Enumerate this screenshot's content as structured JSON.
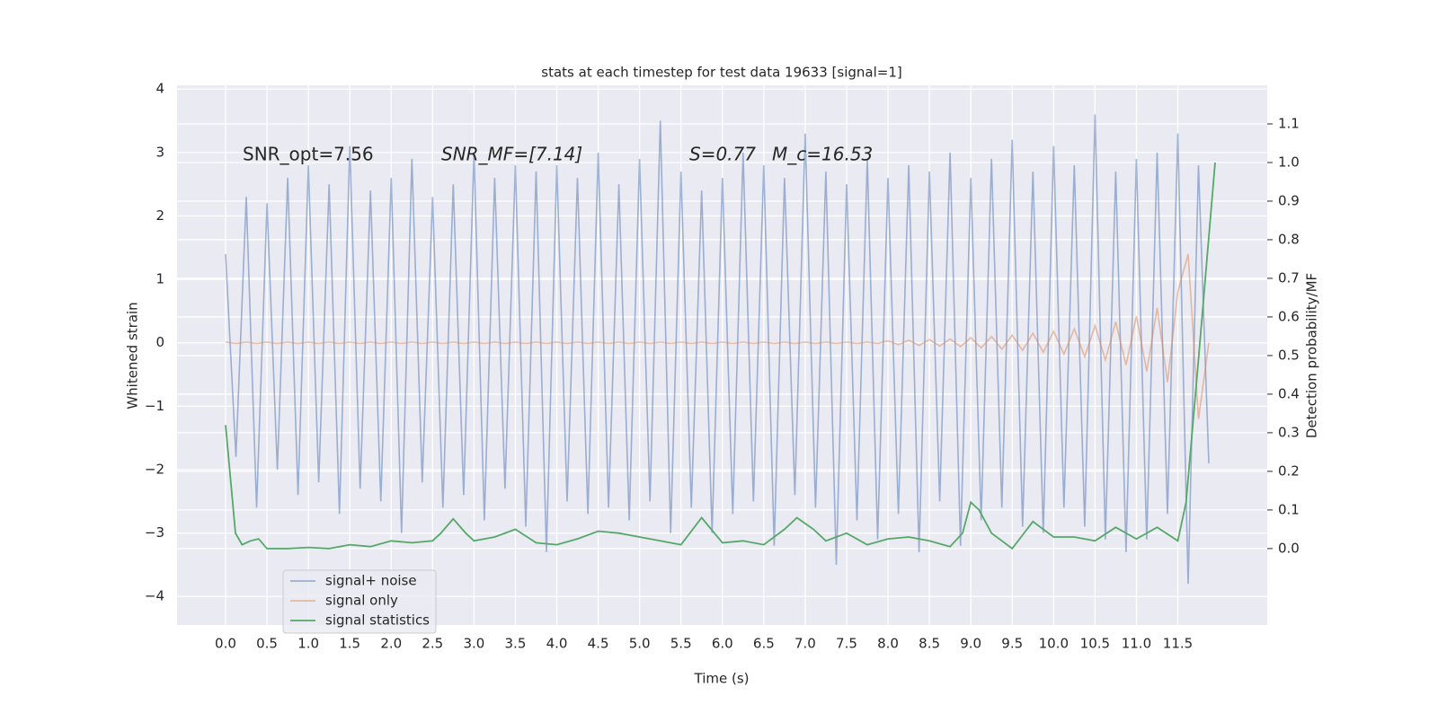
{
  "chart_data": {
    "type": "line",
    "title": "stats at each timestep for test data 19633 [signal=1]",
    "xlabel": "Time (s)",
    "ylabel": "Whitened strain",
    "y2label": "Detection probability/MF",
    "annotations": [
      "SNR_opt=7.56",
      "SNR_MF=[7.14]",
      "S=0.77",
      "M_c=16.53"
    ],
    "xlim": [
      -0.586,
      12.58
    ],
    "ylim": [
      -4.45,
      4.06
    ],
    "y2lim": [
      -0.198,
      1.2
    ],
    "xticks": [
      {
        "value": 0,
        "label": "0.0"
      },
      0.5,
      {
        "value": 1,
        "label": "1.0"
      },
      1.5,
      {
        "value": 2,
        "label": "2.0"
      },
      2.5,
      {
        "value": 3,
        "label": "3.0"
      },
      3.5,
      {
        "value": 4,
        "label": "4.0"
      },
      4.5,
      {
        "value": 5,
        "label": "5.0"
      },
      5.5,
      {
        "value": 6,
        "label": "6.0"
      },
      6.5,
      {
        "value": 7,
        "label": "7.0"
      },
      7.5,
      {
        "value": 8,
        "label": "8.0"
      },
      8.5,
      {
        "value": 9,
        "label": "9.0"
      },
      9.5,
      {
        "value": 10,
        "label": "10.0"
      },
      10.5,
      {
        "value": 11,
        "label": "11.0"
      },
      11.5
    ],
    "yticks": [
      {
        "value": -4,
        "label": "−4"
      },
      {
        "value": -3,
        "label": "−3"
      },
      {
        "value": -2,
        "label": "−2"
      },
      {
        "value": -1,
        "label": "−1"
      },
      0,
      1,
      2,
      3,
      4
    ],
    "y2ticks": [
      {
        "value": 0,
        "label": "0.0"
      },
      0.1,
      0.2,
      0.3,
      0.4,
      0.5,
      0.6,
      0.7,
      0.8,
      0.9,
      {
        "value": 1,
        "label": "1.0"
      },
      1.1
    ],
    "grid": true,
    "legend": "lower left",
    "series": [
      {
        "name": "signal+ noise",
        "color": "#4c72b0",
        "x": [
          0,
          0.125,
          0.25,
          0.375,
          0.5,
          0.625,
          0.75,
          0.875,
          1,
          1.125,
          1.25,
          1.375,
          1.5,
          1.625,
          1.75,
          1.875,
          2,
          2.125,
          2.25,
          2.375,
          2.5,
          2.625,
          2.75,
          2.875,
          3,
          3.125,
          3.25,
          3.375,
          3.5,
          3.625,
          3.75,
          3.875,
          4,
          4.125,
          4.25,
          4.375,
          4.5,
          4.625,
          4.75,
          4.875,
          5,
          5.125,
          5.25,
          5.375,
          5.5,
          5.625,
          5.75,
          5.875,
          6,
          6.125,
          6.25,
          6.375,
          6.5,
          6.625,
          6.75,
          6.875,
          7,
          7.125,
          7.25,
          7.375,
          7.5,
          7.625,
          7.75,
          7.875,
          8,
          8.125,
          8.25,
          8.375,
          8.5,
          8.625,
          8.75,
          8.875,
          9,
          9.125,
          9.25,
          9.375,
          9.5,
          9.625,
          9.75,
          9.875,
          10,
          10.125,
          10.25,
          10.375,
          10.5,
          10.625,
          10.75,
          10.875,
          11,
          11.125,
          11.25,
          11.375,
          11.5,
          11.625,
          11.75,
          11.875
        ],
        "values": [
          1.4,
          -1.8,
          2.3,
          -2.6,
          2.2,
          -2.0,
          2.6,
          -2.4,
          2.8,
          -2.2,
          2.5,
          -2.7,
          3.1,
          -2.3,
          2.4,
          -2.5,
          2.6,
          -3.0,
          2.9,
          -2.2,
          2.3,
          -2.6,
          2.5,
          -2.4,
          3.0,
          -2.8,
          2.6,
          -2.3,
          2.8,
          -2.9,
          2.7,
          -3.3,
          2.8,
          -2.5,
          2.6,
          -2.7,
          3.0,
          -2.6,
          2.5,
          -2.8,
          2.9,
          -2.5,
          3.5,
          -3.0,
          2.7,
          -2.6,
          2.4,
          -3.0,
          2.6,
          -2.7,
          3.0,
          -2.5,
          2.8,
          -3.2,
          2.6,
          -2.4,
          3.3,
          -2.6,
          2.7,
          -3.5,
          2.5,
          -2.8,
          2.9,
          -3.1,
          2.6,
          -2.7,
          2.8,
          -3.3,
          2.7,
          -2.5,
          3.0,
          -3.2,
          2.6,
          -2.8,
          2.9,
          -2.6,
          3.2,
          -2.9,
          2.7,
          -3.0,
          3.1,
          -2.6,
          2.8,
          -2.9,
          3.6,
          -3.1,
          2.7,
          -3.3,
          2.9,
          -3.1,
          3.0,
          -2.7,
          3.3,
          -3.8,
          2.8,
          -1.9
        ]
      },
      {
        "name": "signal only",
        "color": "#dd8452",
        "x": [
          0,
          0.125,
          0.25,
          0.375,
          0.5,
          0.625,
          0.75,
          0.875,
          1,
          1.125,
          1.25,
          1.375,
          1.5,
          1.625,
          1.75,
          1.875,
          2,
          2.125,
          2.25,
          2.375,
          2.5,
          2.625,
          2.75,
          2.875,
          3,
          3.125,
          3.25,
          3.375,
          3.5,
          3.625,
          3.75,
          3.875,
          4,
          4.125,
          4.25,
          4.375,
          4.5,
          4.625,
          4.75,
          4.875,
          5,
          5.125,
          5.25,
          5.375,
          5.5,
          5.625,
          5.75,
          5.875,
          6,
          6.125,
          6.25,
          6.375,
          6.5,
          6.625,
          6.75,
          6.875,
          7,
          7.125,
          7.25,
          7.375,
          7.5,
          7.625,
          7.75,
          7.875,
          8,
          8.125,
          8.25,
          8.375,
          8.5,
          8.625,
          8.75,
          8.875,
          9,
          9.125,
          9.25,
          9.375,
          9.5,
          9.625,
          9.75,
          9.875,
          10,
          10.125,
          10.25,
          10.375,
          10.5,
          10.625,
          10.75,
          10.875,
          11,
          11.125,
          11.25,
          11.375,
          11.5,
          11.625,
          11.75,
          11.875
        ],
        "values": [
          0.01,
          -0.01,
          0.01,
          -0.01,
          0.01,
          -0.01,
          0.01,
          -0.01,
          0.01,
          -0.01,
          0.01,
          -0.01,
          0.01,
          -0.01,
          0.01,
          -0.01,
          0.01,
          -0.01,
          0.01,
          -0.01,
          0.01,
          -0.01,
          0.01,
          -0.01,
          0.01,
          -0.01,
          0.01,
          -0.01,
          0.01,
          -0.01,
          0.01,
          -0.01,
          0.01,
          -0.01,
          0.01,
          -0.01,
          0.01,
          -0.01,
          0.01,
          -0.01,
          0.01,
          -0.01,
          0.01,
          -0.01,
          0.01,
          -0.01,
          0.01,
          -0.01,
          0.01,
          -0.01,
          0.01,
          -0.01,
          0.01,
          -0.01,
          0.01,
          -0.01,
          0.01,
          -0.01,
          0.01,
          -0.01,
          0.01,
          -0.01,
          0.01,
          -0.01,
          0.03,
          -0.03,
          0.04,
          -0.04,
          0.05,
          -0.05,
          0.06,
          -0.06,
          0.08,
          -0.08,
          0.1,
          -0.1,
          0.12,
          -0.12,
          0.15,
          -0.15,
          0.18,
          -0.18,
          0.22,
          -0.22,
          0.27,
          -0.27,
          0.33,
          -0.35,
          0.42,
          -0.45,
          0.55,
          -0.62,
          0.8,
          1.4,
          -1.2,
          0
        ]
      },
      {
        "name": "signal statistics",
        "color": "#55a868",
        "axis": "y2",
        "x": [
          0,
          0.12,
          0.2,
          0.3,
          0.4,
          0.5,
          0.75,
          1.0,
          1.25,
          1.5,
          1.75,
          2.0,
          2.25,
          2.5,
          2.6,
          2.75,
          2.9,
          3.0,
          3.25,
          3.5,
          3.75,
          4.0,
          4.25,
          4.5,
          4.75,
          5.0,
          5.25,
          5.5,
          5.75,
          6.0,
          6.25,
          6.5,
          6.75,
          6.9,
          7.1,
          7.25,
          7.5,
          7.75,
          8.0,
          8.25,
          8.5,
          8.75,
          8.9,
          9.0,
          9.1,
          9.25,
          9.5,
          9.75,
          10.0,
          10.25,
          10.5,
          10.75,
          11.0,
          11.25,
          11.5,
          11.6,
          11.75,
          11.95
        ],
        "values": [
          0.32,
          0.04,
          0.01,
          0.02,
          0.025,
          0.0,
          0.0,
          0.003,
          0.0,
          0.01,
          0.005,
          0.02,
          0.015,
          0.02,
          0.04,
          0.077,
          0.04,
          0.02,
          0.03,
          0.05,
          0.015,
          0.01,
          0.025,
          0.045,
          0.04,
          0.03,
          0.02,
          0.01,
          0.08,
          0.015,
          0.02,
          0.01,
          0.05,
          0.08,
          0.05,
          0.02,
          0.04,
          0.01,
          0.025,
          0.03,
          0.02,
          0.005,
          0.04,
          0.12,
          0.1,
          0.04,
          0.0,
          0.07,
          0.03,
          0.03,
          0.02,
          0.055,
          0.025,
          0.055,
          0.02,
          0.12,
          0.49,
          1.0
        ]
      }
    ]
  }
}
